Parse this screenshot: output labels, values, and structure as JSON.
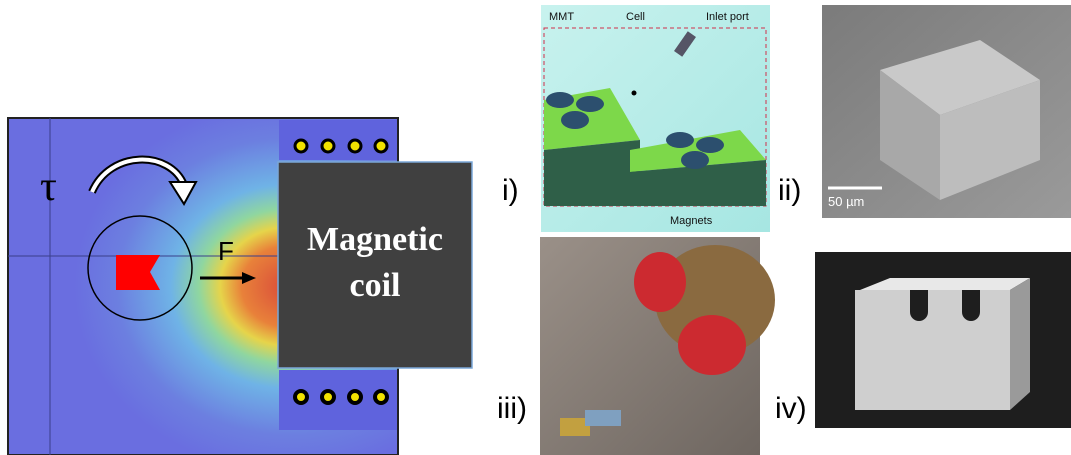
{
  "left_panel": {
    "torque_symbol": "τ",
    "force_label": "F",
    "coil_label": [
      "Magnetic",
      "coil"
    ]
  },
  "panels": [
    {
      "label": "i)",
      "annotations": [
        "MMT",
        "Cell",
        "Inlet port",
        "Magnets"
      ]
    },
    {
      "label": "ii)",
      "scale_bar": "50 µm"
    },
    {
      "label": "iii)"
    },
    {
      "label": "iv)"
    }
  ]
}
